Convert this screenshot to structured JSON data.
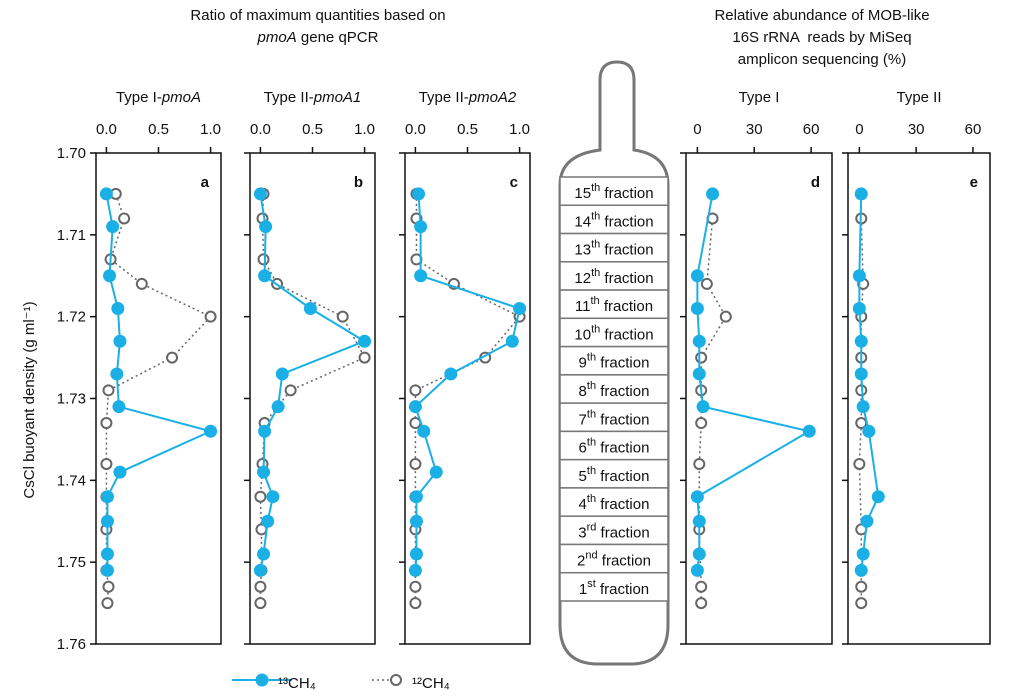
{
  "header_left": {
    "line1": "Ratio of maximum quantities based on",
    "line2_italic": "pmoA",
    "line2": " gene qPCR"
  },
  "header_right": [
    "Relative abundance of MOB-like",
    "16S rRNA  reads by MiSeq",
    "amplicon sequencing (%)"
  ],
  "y_axis_label": "CsCl buoyant density (g ml⁻¹)",
  "tube": {
    "label": "fraction",
    "fractions": [
      {
        "number": "15",
        "suffix": "th"
      },
      {
        "number": "14",
        "suffix": "th"
      },
      {
        "number": "13",
        "suffix": "th"
      },
      {
        "number": "12",
        "suffix": "th"
      },
      {
        "number": "11",
        "suffix": "th"
      },
      {
        "number": "10",
        "suffix": "th"
      },
      {
        "number": "9",
        "suffix": "th"
      },
      {
        "number": "8",
        "suffix": "th"
      },
      {
        "number": "7",
        "suffix": "th"
      },
      {
        "number": "6",
        "suffix": "th"
      },
      {
        "number": "5",
        "suffix": "th"
      },
      {
        "number": "4",
        "suffix": "th"
      },
      {
        "number": "3",
        "suffix": "rd"
      },
      {
        "number": "2",
        "suffix": "nd"
      },
      {
        "number": "1",
        "suffix": "st"
      }
    ]
  },
  "chart_data": [
    {
      "type": "line",
      "letter": "a",
      "title": {
        "text": "Type I-",
        "italic": "pmoA"
      },
      "xlim": [
        -0.1,
        1.1
      ],
      "xticks": [
        {
          "value": 0,
          "label": "0.0"
        },
        {
          "value": 0.5,
          "label": "0.5"
        },
        {
          "value": 1,
          "label": "1.0"
        }
      ],
      "ylim": [
        1.7,
        1.76
      ],
      "yticks": [
        {
          "value": 1.7,
          "label": "1.70"
        },
        1.71,
        1.72,
        1.73,
        1.74,
        1.75,
        1.76
      ],
      "series": [
        {
          "name": "¹³CH₄",
          "color": "#1ab0e6",
          "marker": "filled",
          "line": "solid",
          "y": [
            1.705,
            1.709,
            1.715,
            1.719,
            1.723,
            1.727,
            1.731,
            1.734,
            1.739,
            1.742,
            1.745,
            1.749,
            1.751
          ],
          "values": [
            0,
            0.06,
            0.03,
            0.11,
            0.13,
            0.1,
            0.12,
            1.0,
            0.13,
            0.01,
            0.01,
            0.01,
            0.01
          ]
        },
        {
          "name": "¹²CH₄",
          "color": "#666666",
          "marker": "open",
          "line": "dotted",
          "y": [
            1.705,
            1.708,
            1.713,
            1.716,
            1.72,
            1.725,
            1.729,
            1.733,
            1.738,
            1.742,
            1.746,
            1.751,
            1.753,
            1.755
          ],
          "values": [
            0.09,
            0.17,
            0.04,
            0.34,
            1.0,
            0.63,
            0.02,
            0,
            0,
            0,
            0,
            0,
            0.02,
            0.01
          ]
        }
      ]
    },
    {
      "type": "line",
      "letter": "b",
      "title": {
        "text": "Type II-",
        "italic": "pmoA1"
      },
      "xlim": [
        -0.1,
        1.1
      ],
      "xticks": [
        {
          "value": 0,
          "label": "0.0"
        },
        {
          "value": 0.5,
          "label": "0.5"
        },
        {
          "value": 1,
          "label": "1.0"
        }
      ],
      "series": [
        {
          "color": "#1ab0e6",
          "marker": "filled",
          "line": "solid",
          "y": [
            1.705,
            1.709,
            1.715,
            1.719,
            1.723,
            1.727,
            1.731,
            1.734,
            1.739,
            1.742,
            1.745,
            1.749,
            1.751
          ],
          "values": [
            0,
            0.05,
            0.04,
            0.48,
            1.0,
            0.21,
            0.17,
            0.04,
            0.03,
            0.12,
            0.07,
            0.03,
            0
          ]
        },
        {
          "color": "#666666",
          "marker": "open",
          "line": "dotted",
          "y": [
            1.705,
            1.708,
            1.713,
            1.716,
            1.72,
            1.725,
            1.729,
            1.733,
            1.738,
            1.742,
            1.746,
            1.751,
            1.753,
            1.755
          ],
          "values": [
            0.03,
            0.02,
            0.03,
            0.16,
            0.79,
            1.0,
            0.29,
            0.04,
            0.02,
            0,
            0.01,
            0.01,
            0,
            0
          ]
        }
      ]
    },
    {
      "type": "line",
      "letter": "c",
      "title": {
        "text": "Type II-",
        "italic": "pmoA2"
      },
      "xlim": [
        -0.1,
        1.1
      ],
      "xticks": [
        {
          "value": 0,
          "label": "0.0"
        },
        {
          "value": 0.5,
          "label": "0.5"
        },
        {
          "value": 1,
          "label": "1.0"
        }
      ],
      "series": [
        {
          "color": "#1ab0e6",
          "marker": "filled",
          "line": "solid",
          "y": [
            1.705,
            1.709,
            1.715,
            1.719,
            1.723,
            1.727,
            1.731,
            1.734,
            1.739,
            1.742,
            1.745,
            1.749,
            1.751
          ],
          "values": [
            0.03,
            0.05,
            0.05,
            1.0,
            0.93,
            0.34,
            0,
            0.08,
            0.2,
            0.01,
            0.01,
            0.01,
            0
          ]
        },
        {
          "color": "#666666",
          "marker": "open",
          "line": "dotted",
          "y": [
            1.705,
            1.708,
            1.713,
            1.716,
            1.72,
            1.725,
            1.729,
            1.733,
            1.738,
            1.742,
            1.746,
            1.751,
            1.753,
            1.755
          ],
          "values": [
            0.01,
            0.01,
            0.01,
            0.37,
            1.0,
            0.67,
            0,
            0,
            0,
            0,
            0,
            0,
            0,
            0
          ]
        }
      ]
    },
    {
      "type": "line",
      "letter": "d",
      "title": {
        "text": "Type I"
      },
      "xlim": [
        -6,
        71
      ],
      "xticks": [
        0,
        30,
        60
      ],
      "series": [
        {
          "color": "#1ab0e6",
          "marker": "filled",
          "line": "solid",
          "y": [
            1.705,
            1.715,
            1.719,
            1.723,
            1.727,
            1.731,
            1.734,
            1.742,
            1.745,
            1.749,
            1.751
          ],
          "values": [
            8,
            0,
            0,
            1,
            1,
            3,
            59,
            0,
            1,
            1,
            0
          ]
        },
        {
          "color": "#666666",
          "marker": "open",
          "line": "dotted",
          "y": [
            1.708,
            1.716,
            1.72,
            1.725,
            1.729,
            1.733,
            1.738,
            1.746,
            1.753,
            1.755
          ],
          "values": [
            8,
            5,
            15,
            2,
            2,
            2,
            1,
            1,
            2,
            2
          ]
        }
      ]
    },
    {
      "type": "line",
      "letter": "e",
      "title": {
        "text": "Type II"
      },
      "xlim": [
        -6,
        69
      ],
      "xticks": [
        0,
        30,
        60
      ],
      "series": [
        {
          "color": "#1ab0e6",
          "marker": "filled",
          "line": "solid",
          "y": [
            1.705,
            1.715,
            1.719,
            1.723,
            1.727,
            1.731,
            1.734,
            1.742,
            1.745,
            1.749,
            1.751
          ],
          "values": [
            1,
            0,
            0,
            1,
            1,
            2,
            5,
            10,
            4,
            2,
            1
          ]
        },
        {
          "color": "#666666",
          "marker": "open",
          "line": "dotted",
          "y": [
            1.708,
            1.716,
            1.72,
            1.725,
            1.729,
            1.733,
            1.738,
            1.746,
            1.753,
            1.755
          ],
          "values": [
            1,
            2,
            1,
            1,
            1,
            1,
            0,
            1,
            1,
            1
          ]
        }
      ]
    }
  ]
}
